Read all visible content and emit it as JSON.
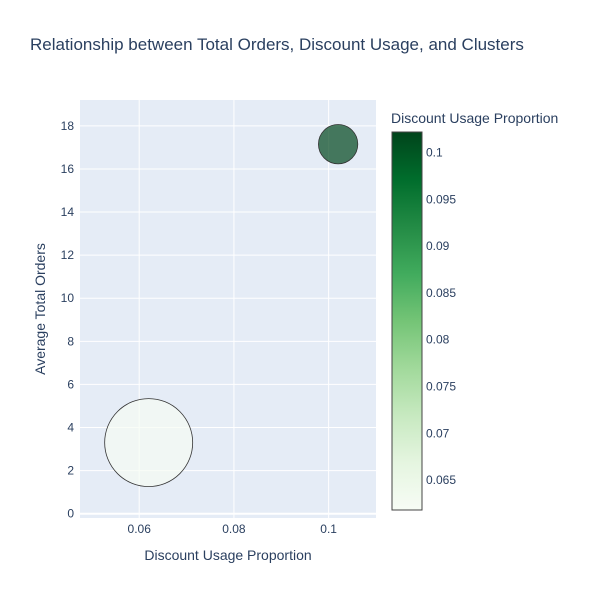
{
  "chart_data": {
    "type": "scatter",
    "title": "Relationship between Total Orders, Discount Usage, and Clusters",
    "xlabel": "Discount Usage Proportion",
    "ylabel": "Average Total Orders",
    "xlim": [
      0.0475,
      0.11
    ],
    "ylim": [
      -0.2,
      19.2
    ],
    "x_ticks": [
      0.06,
      0.08,
      0.1
    ],
    "x_tick_labels": [
      "0.06",
      "0.08",
      "0.1"
    ],
    "y_ticks": [
      0,
      2,
      4,
      6,
      8,
      10,
      12,
      14,
      16,
      18
    ],
    "y_tick_labels": [
      "0",
      "2",
      "4",
      "6",
      "8",
      "10",
      "12",
      "14",
      "16",
      "18"
    ],
    "grid": true,
    "plot_background": "#e5ecf6",
    "marker_opacity": 0.7,
    "points": [
      {
        "x": 0.062,
        "y": 3.3,
        "color_value": 0.062,
        "size_value": 1.0
      },
      {
        "x": 0.102,
        "y": 17.15,
        "color_value": 0.102,
        "size_value": 0.2
      }
    ],
    "colorscale": {
      "name": "Greens",
      "stops": [
        [
          0.0,
          "#f7fcf5"
        ],
        [
          0.125,
          "#e5f5e0"
        ],
        [
          0.25,
          "#c7e9c0"
        ],
        [
          0.375,
          "#a1d99b"
        ],
        [
          0.5,
          "#74c476"
        ],
        [
          0.625,
          "#41ab5d"
        ],
        [
          0.75,
          "#238b45"
        ],
        [
          0.875,
          "#006d2c"
        ],
        [
          1.0,
          "#00441b"
        ]
      ]
    },
    "colorbar": {
      "title": "Discount Usage Proportion",
      "range": [
        0.0618,
        0.1022
      ],
      "ticks": [
        0.065,
        0.07,
        0.075,
        0.08,
        0.085,
        0.09,
        0.095,
        0.1
      ],
      "tick_labels": [
        "0.065",
        "0.07",
        "0.075",
        "0.08",
        "0.085",
        "0.09",
        "0.095",
        "0.1"
      ]
    }
  }
}
